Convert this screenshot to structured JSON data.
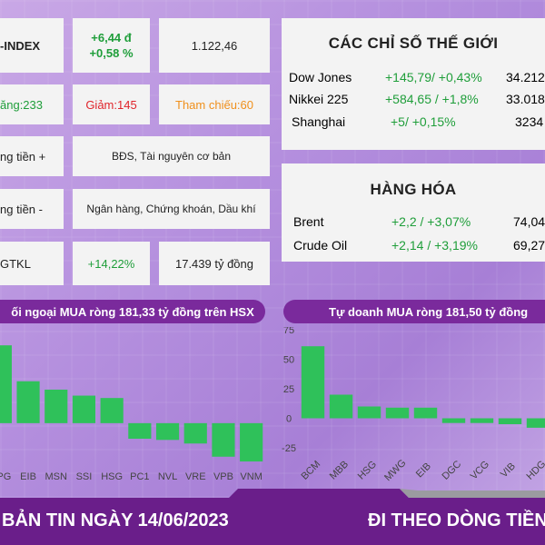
{
  "market": {
    "index_name": "-INDEX",
    "index_change": "+6,44 đ",
    "index_change_pct": "+0,58 %",
    "index_value": "1.122,46",
    "up_label": "ăng:233",
    "down_label": "Giảm:145",
    "ref_label": "Tham chiếu:60",
    "inflow_label": "ng tiền +",
    "inflow_sectors": "BĐS, Tài nguyên cơ bản",
    "outflow_label": "ng tiền -",
    "outflow_sectors": "Ngân hàng, Chứng khoán, Dầu khí",
    "volume_label": "GTKL",
    "volume_change": "+14,22%",
    "volume_value": "17.439 tỷ đồng"
  },
  "world": {
    "title": "CÁC CHỈ SỐ THẾ GIỚI",
    "rows": [
      {
        "name": "Dow Jones",
        "change": "+145,79/ +0,43%",
        "value": "34.212"
      },
      {
        "name": "Nikkei 225",
        "change": "+584,65 / +1,8%",
        "value": "33.018"
      },
      {
        "name": "Shanghai",
        "change": "+5/ +0,15%",
        "value": "3234"
      }
    ]
  },
  "commodities": {
    "title": "HÀNG HÓA",
    "rows": [
      {
        "name": "Brent",
        "change": "+2,2 / +3,07%",
        "value": "74,04"
      },
      {
        "name": "Crude Oil",
        "change": "+2,14 / +3,19%",
        "value": "69,27"
      }
    ]
  },
  "foreign_banner": "ối ngoại MUA ròng 181,33 tỷ đồng trên HSX",
  "prop_banner": "Tự doanh MUA ròng 181,50 tỷ đồng",
  "footer": {
    "left": "BẢN TIN NGÀY 14/06/2023",
    "right": "ĐI THEO DÒNG TIỀN"
  },
  "colors": {
    "positive": "#2fc15a",
    "negative": "#2fc15a",
    "banner": "#7a2a9c",
    "footer": "#6a1e8a"
  },
  "chart_data": [
    {
      "type": "bar",
      "categories": [
        "HPG",
        "EIB",
        "MSN",
        "SSI",
        "HSG",
        "PC1",
        "NVL",
        "VRE",
        "VPB",
        "VNM"
      ],
      "values": [
        65,
        35,
        28,
        23,
        21,
        -13,
        -14,
        -17,
        -28,
        -32
      ],
      "ylim": [
        -35,
        75
      ]
    },
    {
      "type": "bar",
      "categories": [
        "BCM",
        "MBB",
        "HSG",
        "MWG",
        "EIB",
        "DGC",
        "VCG",
        "VIB",
        "HDG"
      ],
      "values": [
        61,
        20,
        10,
        9,
        9,
        -4,
        -4,
        -5,
        -8
      ],
      "yticks": [
        "75",
        "50",
        "25",
        "0",
        "-25"
      ],
      "ylim": [
        -35,
        75
      ]
    }
  ]
}
